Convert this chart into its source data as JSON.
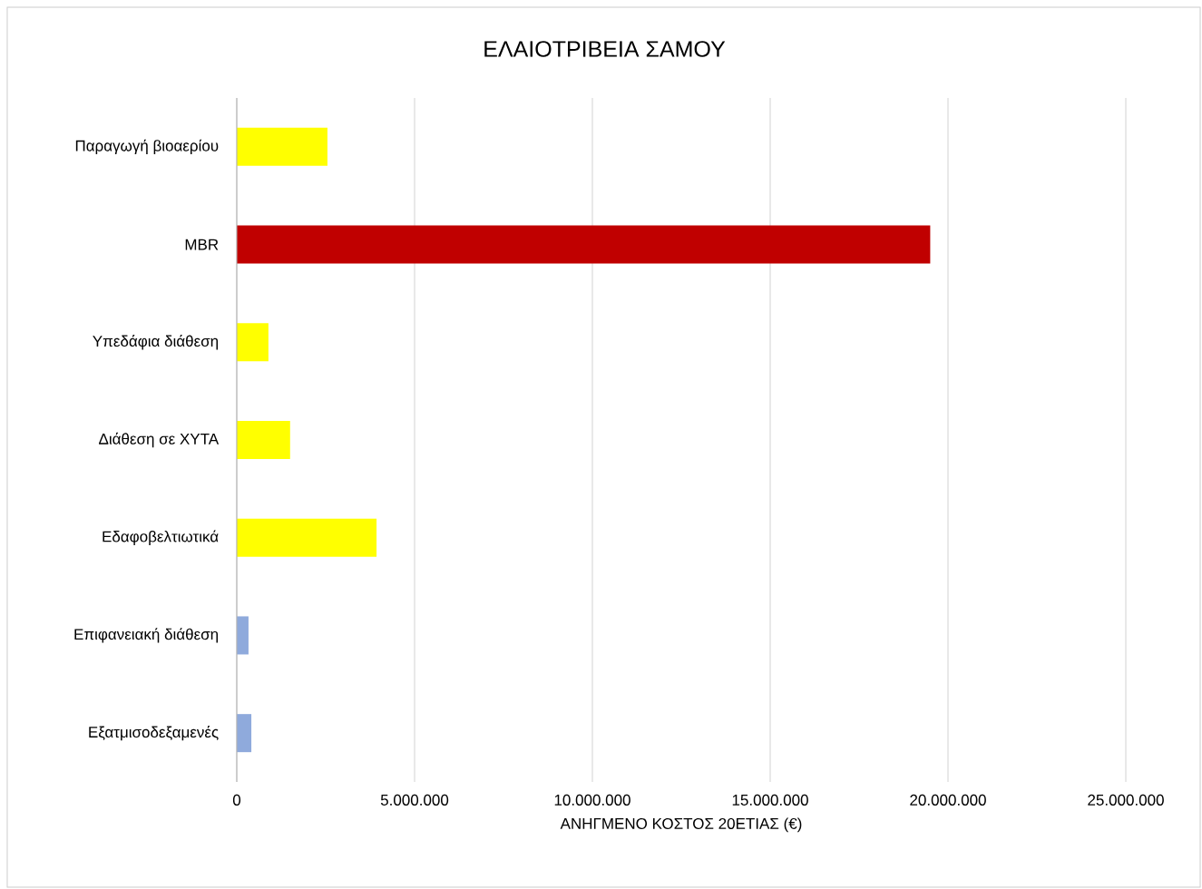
{
  "chart_data": {
    "type": "bar",
    "orientation": "horizontal",
    "title": "ΕΛΑΙΟΤΡΙΒΕΙΑ ΣΑΜΟΥ",
    "xlabel": "ΑΝΗΓΜΕΝΟ ΚΟΣΤΟΣ 20ΕΤΙΑΣ (€)",
    "categories": [
      "Παραγωγή βιοαερίου",
      "MBR",
      "Υπεδάφια διάθεση",
      "Διάθεση σε ΧΥΤΑ",
      "Εδαφοβελτιωτικά",
      "Επιφανειακή διάθεση",
      "Εξατμισοδεξαμενές"
    ],
    "values": [
      2550000,
      19500000,
      890000,
      1500000,
      3930000,
      330000,
      410000
    ],
    "colors": [
      "#ffff00",
      "#c00000",
      "#ffff00",
      "#ffff00",
      "#ffff00",
      "#8faadc",
      "#8faadc"
    ],
    "xlim": [
      0,
      25000000
    ],
    "xticks": [
      0,
      {
        "value": 5000000,
        "label": "5.000.000"
      },
      {
        "value": 10000000,
        "label": "10.000.000"
      },
      {
        "value": 15000000,
        "label": "15.000.000"
      },
      {
        "value": 20000000,
        "label": "20.000.000"
      },
      {
        "value": 25000000,
        "label": "25.000.000"
      }
    ],
    "grid": "x"
  }
}
